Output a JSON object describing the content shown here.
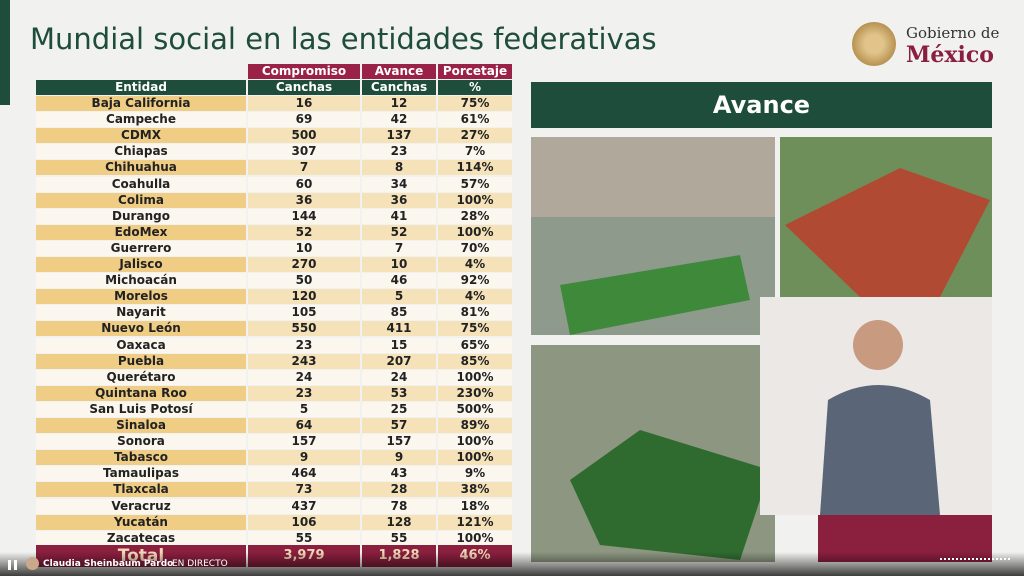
{
  "header": {
    "title": "Mundial social en las entidades federativas",
    "logo_line1": "Gobierno de",
    "logo_line2": "México"
  },
  "table": {
    "group_headers": [
      "Compromiso",
      "Avance",
      "Porcetaje"
    ],
    "columns": [
      "Entidad",
      "Canchas",
      "Canchas",
      "%"
    ],
    "rows": [
      [
        "Baja California",
        16,
        12,
        "75%"
      ],
      [
        "Campeche",
        69,
        42,
        "61%"
      ],
      [
        "CDMX",
        500,
        137,
        "27%"
      ],
      [
        "Chiapas",
        307,
        23,
        "7%"
      ],
      [
        "Chihuahua",
        7,
        8,
        "114%"
      ],
      [
        "Coahulla",
        60,
        34,
        "57%"
      ],
      [
        "Colima",
        36,
        36,
        "100%"
      ],
      [
        "Durango",
        144,
        41,
        "28%"
      ],
      [
        "EdoMex",
        52,
        52,
        "100%"
      ],
      [
        "Guerrero",
        10,
        7,
        "70%"
      ],
      [
        "Jalisco",
        270,
        10,
        "4%"
      ],
      [
        "Michoacán",
        50,
        46,
        "92%"
      ],
      [
        "Morelos",
        120,
        5,
        "4%"
      ],
      [
        "Nayarit",
        105,
        85,
        "81%"
      ],
      [
        "Nuevo León",
        550,
        411,
        "75%"
      ],
      [
        "Oaxaca",
        23,
        15,
        "65%"
      ],
      [
        "Puebla",
        243,
        207,
        "85%"
      ],
      [
        "Querétaro",
        24,
        24,
        "100%"
      ],
      [
        "Quintana Roo",
        23,
        53,
        "230%"
      ],
      [
        "San Luis Potosí",
        5,
        25,
        "500%"
      ],
      [
        "Sinaloa",
        64,
        57,
        "89%"
      ],
      [
        "Sonora",
        157,
        157,
        "100%"
      ],
      [
        "Tabasco",
        9,
        9,
        "100%"
      ],
      [
        "Tamaulipas",
        464,
        43,
        "9%"
      ],
      [
        "Tlaxcala",
        73,
        28,
        "38%"
      ],
      [
        "Veracruz",
        437,
        78,
        "18%"
      ],
      [
        "Yucatán",
        106,
        128,
        "121%"
      ],
      [
        "Zacatecas",
        55,
        55,
        "100%"
      ]
    ],
    "total": [
      "Total",
      "3,979",
      "1,828",
      "46%"
    ]
  },
  "panel": {
    "title": "Avance"
  },
  "player": {
    "channel": "Claudia Sheinbaum Pardo",
    "status": "EN DIRECTO"
  }
}
